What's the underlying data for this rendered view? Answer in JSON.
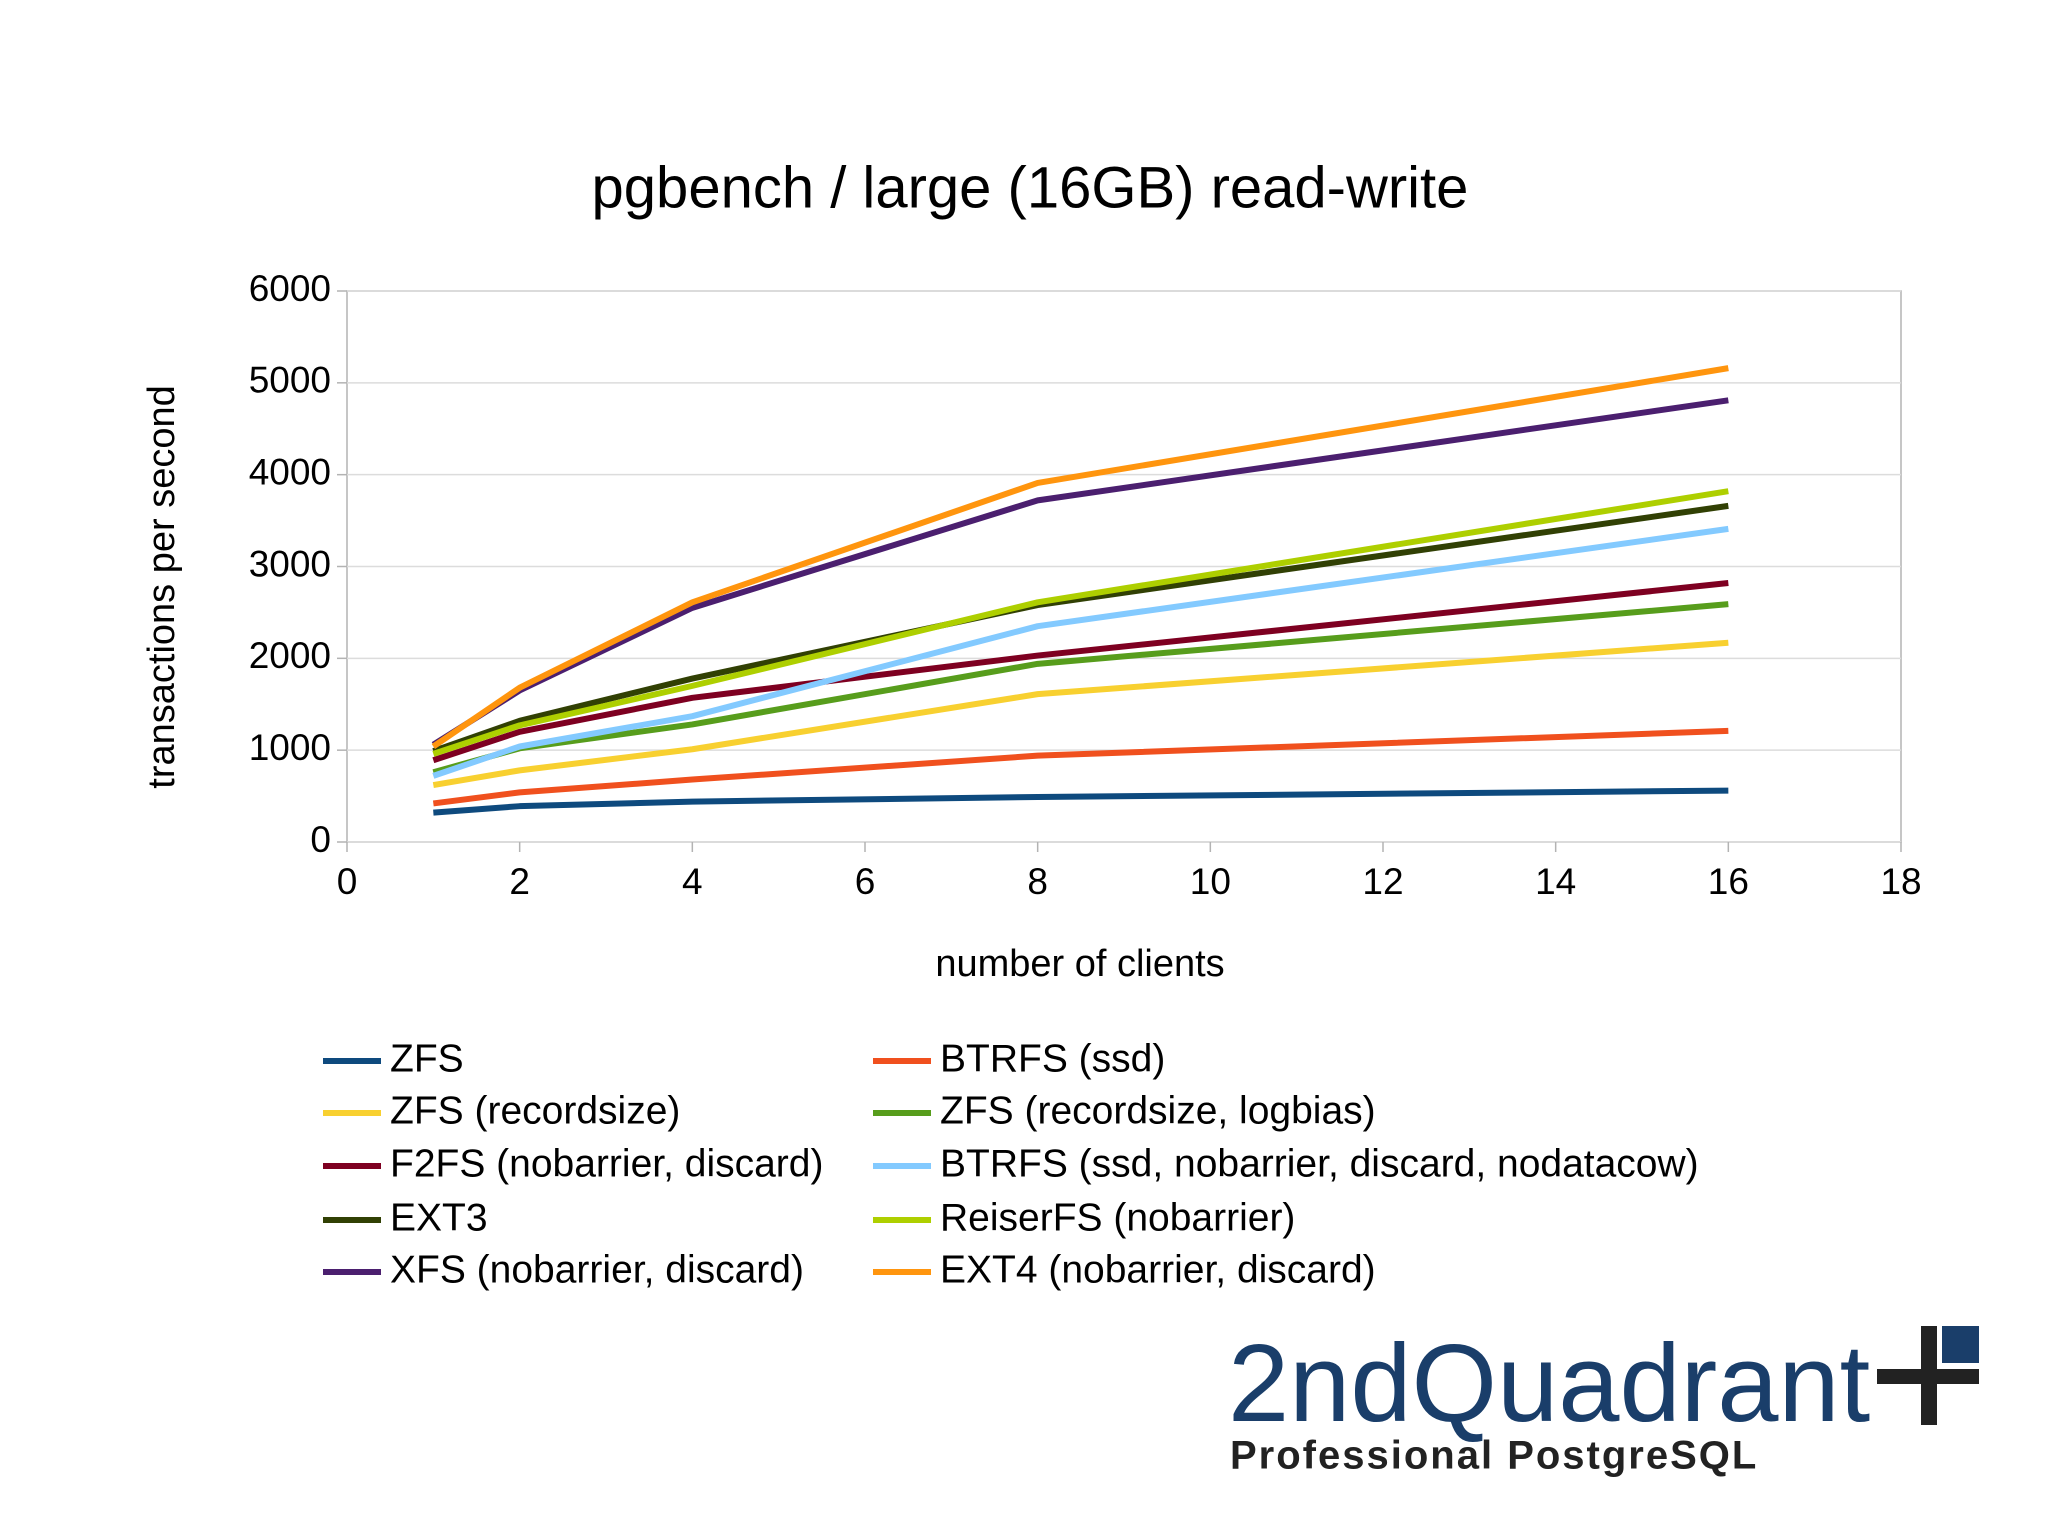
{
  "chart_data": {
    "type": "line",
    "title": "pgbench / large (16GB) read-write",
    "x_label": "number of clients",
    "y_label": "transactions per second",
    "x": [
      1,
      2,
      4,
      8,
      16
    ],
    "xlim": [
      0,
      18
    ],
    "xticks": [
      0,
      2,
      4,
      6,
      8,
      10,
      12,
      14,
      16,
      18
    ],
    "ylim": [
      0,
      6000
    ],
    "yticks": [
      0,
      1000,
      2000,
      3000,
      4000,
      5000,
      6000
    ],
    "grid": true,
    "legend": "bottom",
    "series": [
      {
        "name": "ZFS",
        "color": "#0e4a7e",
        "values": [
          320,
          390,
          440,
          490,
          560
        ]
      },
      {
        "name": "BTRFS (ssd)",
        "color": "#f0501e",
        "values": [
          420,
          540,
          680,
          940,
          1210
        ]
      },
      {
        "name": "ZFS (recordsize)",
        "color": "#f8d030",
        "values": [
          620,
          780,
          1010,
          1610,
          2170
        ]
      },
      {
        "name": "ZFS (recordsize, logbias)",
        "color": "#579d1c",
        "values": [
          760,
          1020,
          1280,
          1940,
          2590
        ]
      },
      {
        "name": "F2FS (nobarrier, discard)",
        "color": "#7e0021",
        "values": [
          890,
          1200,
          1570,
          2030,
          2820
        ]
      },
      {
        "name": "BTRFS (ssd, nobarrier, discard, nodatacow)",
        "color": "#83caff",
        "values": [
          720,
          1040,
          1370,
          2350,
          3410
        ]
      },
      {
        "name": "EXT3",
        "color": "#314004",
        "values": [
          990,
          1320,
          1780,
          2580,
          3660
        ]
      },
      {
        "name": "ReiserFS (nobarrier)",
        "color": "#aecf00",
        "values": [
          960,
          1270,
          1700,
          2610,
          3820
        ]
      },
      {
        "name": "XFS (nobarrier, discard)",
        "color": "#4b1f6f",
        "values": [
          1060,
          1650,
          2550,
          3720,
          4810
        ]
      },
      {
        "name": "EXT4 (nobarrier, discard)",
        "color": "#ff950e",
        "values": [
          1040,
          1680,
          2610,
          3910,
          5160
        ]
      }
    ]
  },
  "logo": {
    "name": "2ndQuadrant",
    "tagline": "Professional PostgreSQL"
  }
}
